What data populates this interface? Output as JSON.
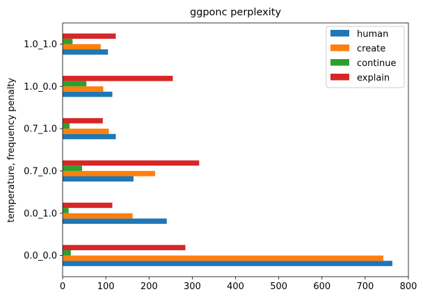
{
  "chart_data": {
    "type": "bar",
    "orientation": "horizontal",
    "title": "ggponc perplexity",
    "xlabel": "",
    "ylabel": "temperature, frequency penalty",
    "categories": [
      "0.0_0.0",
      "0.0_1.0",
      "0.7_0.0",
      "0.7_1.0",
      "1.0_0.0",
      "1.0_1.0"
    ],
    "xlim": [
      0,
      800
    ],
    "xticks": [
      0,
      100,
      200,
      300,
      400,
      500,
      600,
      700,
      800
    ],
    "grid": false,
    "legend_position": "upper-right",
    "series": [
      {
        "name": "human",
        "color": "#1f77b4",
        "values": [
          763,
          241,
          164,
          123,
          115,
          105
        ]
      },
      {
        "name": "create",
        "color": "#ff7f0e",
        "values": [
          742,
          162,
          214,
          107,
          94,
          88
        ]
      },
      {
        "name": "continue",
        "color": "#2ca02c",
        "values": [
          19,
          14,
          45,
          16,
          55,
          23
        ]
      },
      {
        "name": "explain",
        "color": "#d62728",
        "values": [
          284,
          115,
          316,
          93,
          255,
          123
        ]
      }
    ]
  }
}
